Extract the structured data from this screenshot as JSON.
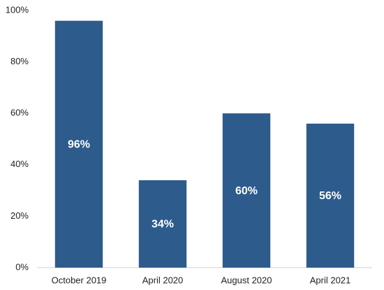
{
  "chart_data": {
    "type": "bar",
    "categories": [
      "October 2019",
      "April 2020",
      "August 2020",
      "April 2021"
    ],
    "values": [
      96,
      34,
      60,
      56
    ],
    "value_labels": [
      "96%",
      "34%",
      "60%",
      "56%"
    ],
    "color": "#2d5b8b",
    "ylim": [
      0,
      100
    ],
    "yticks": [
      {
        "value": 0,
        "label": "0%"
      },
      {
        "value": 20,
        "label": "20%"
      },
      {
        "value": 40,
        "label": "40%"
      },
      {
        "value": 60,
        "label": "60%"
      },
      {
        "value": 80,
        "label": "80%"
      },
      {
        "value": 100,
        "label": "100%"
      }
    ],
    "grid": false
  }
}
